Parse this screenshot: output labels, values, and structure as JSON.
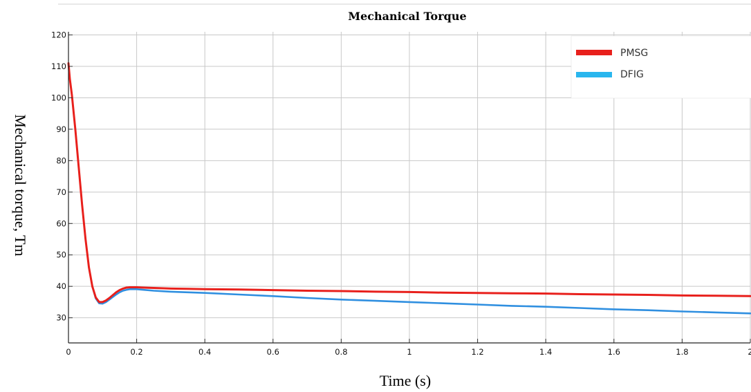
{
  "chart_data": {
    "type": "line",
    "title": "Mechanical Torque",
    "xlabel": "Time (s)",
    "ylabel": "Mechanical torque, Tm",
    "xlim": [
      0,
      2
    ],
    "ylim": [
      22,
      121
    ],
    "xticks": [
      0,
      0.2,
      0.4,
      0.6,
      0.8,
      1,
      1.2,
      1.4,
      1.6,
      1.8,
      2
    ],
    "xtick_labels": [
      "0",
      "0.2",
      "0.4",
      "0.6",
      "0.8",
      "1",
      "1.2",
      "1.4",
      "1.6",
      "1.8",
      "2"
    ],
    "yticks": [
      30,
      40,
      50,
      60,
      70,
      80,
      90,
      100,
      110,
      120
    ],
    "grid": true,
    "legend_position": "top-right",
    "series": [
      {
        "name": "PMSG",
        "color": "#e8201c",
        "x": [
          0,
          0.004,
          0.01,
          0.02,
          0.03,
          0.04,
          0.05,
          0.06,
          0.07,
          0.08,
          0.09,
          0.1,
          0.11,
          0.12,
          0.13,
          0.14,
          0.15,
          0.16,
          0.17,
          0.18,
          0.19,
          0.2,
          0.22,
          0.25,
          0.3,
          0.35,
          0.4,
          0.5,
          0.6,
          0.7,
          0.8,
          0.9,
          1.0,
          1.1,
          1.2,
          1.3,
          1.4,
          1.5,
          1.6,
          1.7,
          1.8,
          1.9,
          2.0
        ],
        "y": [
          111,
          106,
          101,
          90,
          78,
          66,
          55,
          46,
          40,
          36.5,
          35,
          35,
          35.5,
          36.3,
          37.2,
          38.1,
          38.8,
          39.3,
          39.6,
          39.7,
          39.7,
          39.7,
          39.6,
          39.5,
          39.3,
          39.2,
          39.1,
          39,
          38.8,
          38.6,
          38.5,
          38.3,
          38.2,
          38,
          37.9,
          37.8,
          37.7,
          37.5,
          37.4,
          37.3,
          37.1,
          37,
          36.9
        ]
      },
      {
        "name": "DFIG",
        "color": "#2f8fe0",
        "x": [
          0.07,
          0.08,
          0.09,
          0.1,
          0.11,
          0.12,
          0.13,
          0.14,
          0.15,
          0.16,
          0.17,
          0.18,
          0.19,
          0.2,
          0.22,
          0.25,
          0.3,
          0.35,
          0.4,
          0.5,
          0.6,
          0.7,
          0.8,
          0.9,
          1.0,
          1.1,
          1.2,
          1.3,
          1.4,
          1.5,
          1.6,
          1.7,
          1.8,
          1.9,
          2.0
        ],
        "y": [
          40,
          36.2,
          34.6,
          34.5,
          35,
          35.8,
          36.6,
          37.4,
          38.1,
          38.6,
          38.9,
          39.1,
          39.1,
          39.1,
          38.9,
          38.6,
          38.3,
          38.1,
          37.9,
          37.4,
          36.9,
          36.3,
          35.8,
          35.4,
          35,
          34.6,
          34.2,
          33.8,
          33.5,
          33.1,
          32.7,
          32.4,
          32,
          31.7,
          31.4
        ]
      }
    ]
  }
}
